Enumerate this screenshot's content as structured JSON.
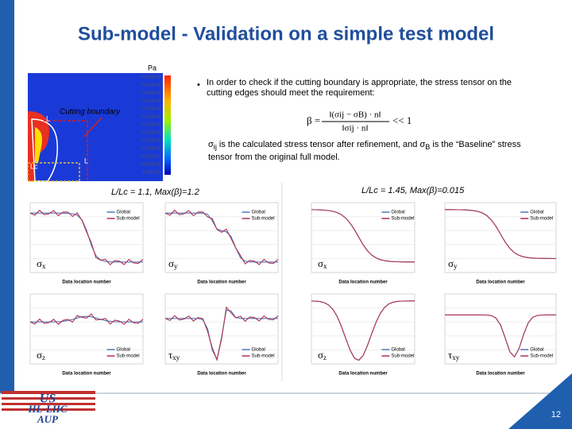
{
  "header": {
    "title": "Sub-model - Validation on a simple test model"
  },
  "contour": {
    "unit": "Pa",
    "boundary_label": "Cutting boundary",
    "length_label": "L",
    "length_label_2": "L",
    "lc_label": "Lc",
    "scale": [
      "+5.88E+08",
      "+5.36E+08",
      "+4.83E+08",
      "+4.30E+08",
      "+3.77E+08",
      "+3.25E+08",
      "+2.72E+08",
      "+2.19E+08",
      "+1.67E+08",
      "+1.14E+08",
      "+6.11E+07",
      "+8.39E+06",
      "-4.43E+07"
    ]
  },
  "bullet": {
    "text": "In order to check if the cutting boundary is appropriate, the stress tensor on the cutting edges should meet the requirement:",
    "formula": {
      "lhs": "β =",
      "numerator": "‖(σij − σB) · n‖",
      "denominator": "‖σij · n‖",
      "rhs": "<< 1"
    },
    "note": [
      "σ",
      "ij",
      " is the calculated stress tensor after refinement, and σ",
      "B",
      " is the “Baseline” stress tensor from the original full model."
    ]
  },
  "groups": [
    {
      "caption": "L/Lc = 1.1, Max(β)=1.2"
    },
    {
      "caption": "L/Lc = 1.45, Max(β)=0.015"
    }
  ],
  "panels": [
    {
      "symbol": "σ",
      "sub": "x"
    },
    {
      "symbol": "σ",
      "sub": "y"
    },
    {
      "symbol": "σ",
      "sub": "z"
    },
    {
      "symbol": "τ",
      "sub": "xy"
    },
    {
      "symbol": "σ",
      "sub": "x"
    },
    {
      "symbol": "σ",
      "sub": "y"
    },
    {
      "symbol": "σ",
      "sub": "z"
    },
    {
      "symbol": "τ",
      "sub": "xy"
    }
  ],
  "x_label": "Data location number",
  "legend": [
    "Global",
    "Sub-model"
  ],
  "logo": [
    "US",
    "HL-LHC",
    "AUP"
  ],
  "page_number": "12"
}
